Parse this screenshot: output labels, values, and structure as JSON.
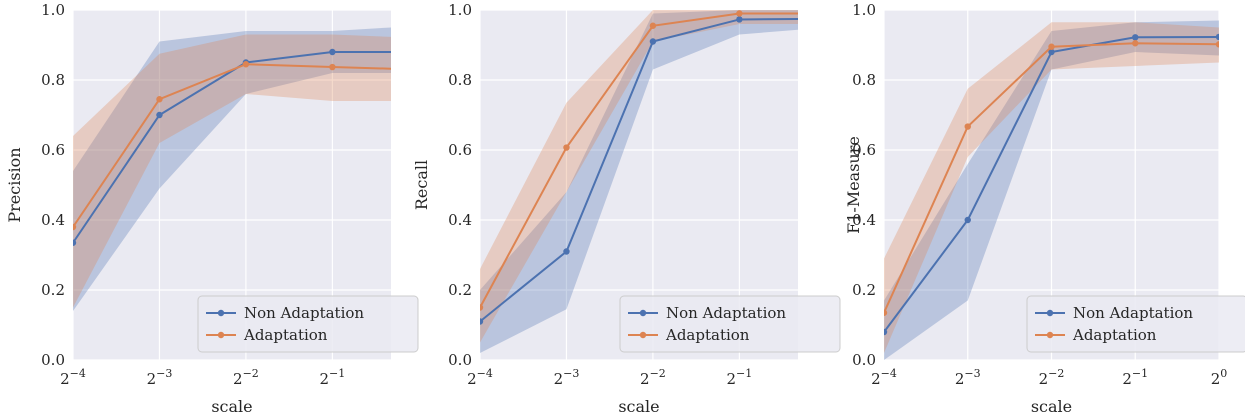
{
  "chart_data": [
    {
      "type": "line",
      "xlabel": "scale",
      "ylabel": "Precision",
      "x_scale": "log2",
      "x": [
        0.0625,
        0.125,
        0.25,
        0.5,
        1
      ],
      "x_tick_labels": [
        {
          "base": "2",
          "exp": "−4"
        },
        {
          "base": "2",
          "exp": "−3"
        },
        {
          "base": "2",
          "exp": "−2"
        },
        {
          "base": "2",
          "exp": "−1"
        }
      ],
      "xlim": [
        0.0625,
        0.8
      ],
      "ylim": [
        0.0,
        1.0
      ],
      "y_ticks": [
        "0.0",
        "0.2",
        "0.4",
        "0.6",
        "0.8",
        "1.0"
      ],
      "grid": true,
      "legend_position": "lower-right",
      "series": [
        {
          "name": "Non Adaptation",
          "color": "#4c72b0",
          "values": [
            0.335,
            0.7,
            0.85,
            0.88,
            0.88
          ],
          "lower": [
            0.14,
            0.49,
            0.76,
            0.82,
            0.82
          ],
          "upper": [
            0.54,
            0.91,
            0.94,
            0.94,
            0.955
          ]
        },
        {
          "name": "Adaptation",
          "color": "#dd8452",
          "values": [
            0.38,
            0.745,
            0.845,
            0.837,
            0.83
          ],
          "lower": [
            0.15,
            0.62,
            0.76,
            0.74,
            0.74
          ],
          "upper": [
            0.64,
            0.875,
            0.93,
            0.93,
            0.92
          ]
        }
      ]
    },
    {
      "type": "line",
      "xlabel": "scale",
      "ylabel": "Recall",
      "x_scale": "log2",
      "x": [
        0.0625,
        0.125,
        0.25,
        0.5,
        1
      ],
      "x_tick_labels": [
        {
          "base": "2",
          "exp": "−4"
        },
        {
          "base": "2",
          "exp": "−3"
        },
        {
          "base": "2",
          "exp": "−2"
        },
        {
          "base": "2",
          "exp": "−1"
        }
      ],
      "xlim": [
        0.0625,
        0.8
      ],
      "ylim": [
        0.0,
        1.0
      ],
      "y_ticks": [
        "0.0",
        "0.2",
        "0.4",
        "0.6",
        "0.8",
        "1.0"
      ],
      "grid": true,
      "legend_position": "lower-right",
      "series": [
        {
          "name": "Non Adaptation",
          "color": "#4c72b0",
          "values": [
            0.11,
            0.31,
            0.91,
            0.973,
            0.975
          ],
          "lower": [
            0.02,
            0.145,
            0.83,
            0.93,
            0.95
          ],
          "upper": [
            0.2,
            0.48,
            0.99,
            1.0,
            1.0
          ]
        },
        {
          "name": "Adaptation",
          "color": "#dd8452",
          "values": [
            0.15,
            0.607,
            0.955,
            0.99,
            0.99
          ],
          "lower": [
            0.05,
            0.48,
            0.91,
            0.96,
            0.96
          ],
          "upper": [
            0.26,
            0.735,
            1.0,
            1.0,
            1.0
          ]
        }
      ]
    },
    {
      "type": "line",
      "xlabel": "scale",
      "ylabel": "F1-Measure",
      "x_scale": "log2",
      "x": [
        0.0625,
        0.125,
        0.25,
        0.5,
        1
      ],
      "x_tick_labels": [
        {
          "base": "2",
          "exp": "−4"
        },
        {
          "base": "2",
          "exp": "−3"
        },
        {
          "base": "2",
          "exp": "−2"
        },
        {
          "base": "2",
          "exp": "−1"
        },
        {
          "base": "2",
          "exp": "0"
        }
      ],
      "xlim": [
        0.0625,
        1
      ],
      "ylim": [
        0.0,
        1.0
      ],
      "y_ticks": [
        "0.0",
        "0.2",
        "0.4",
        "0.6",
        "0.8",
        "1.0"
      ],
      "grid": true,
      "legend_position": "lower-right",
      "series": [
        {
          "name": "Non Adaptation",
          "color": "#4c72b0",
          "values": [
            0.08,
            0.4,
            0.88,
            0.922,
            0.923
          ],
          "lower": [
            0.0,
            0.17,
            0.83,
            0.88,
            0.87
          ],
          "upper": [
            0.17,
            0.56,
            0.94,
            0.965,
            0.97
          ]
        },
        {
          "name": "Adaptation",
          "color": "#dd8452",
          "values": [
            0.135,
            0.667,
            0.895,
            0.905,
            0.902
          ],
          "lower": [
            0.02,
            0.58,
            0.83,
            0.84,
            0.85
          ],
          "upper": [
            0.29,
            0.775,
            0.965,
            0.965,
            0.95
          ]
        }
      ]
    }
  ]
}
